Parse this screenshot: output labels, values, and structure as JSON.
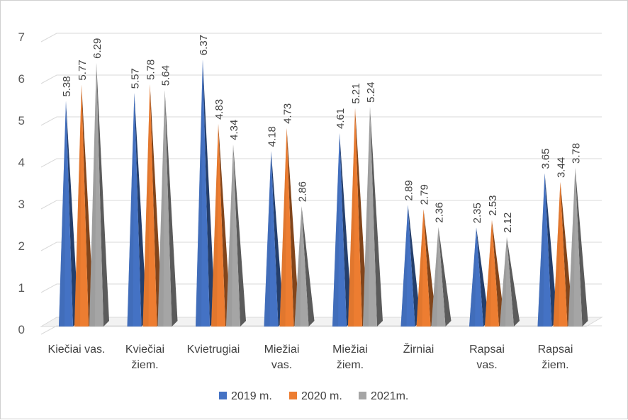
{
  "chart_data": {
    "type": "bar",
    "shape": "3d-pyramid-pointed",
    "categories": [
      [
        "Kiečiai vas."
      ],
      [
        "Kviečiai",
        "žiem."
      ],
      [
        "Kvietrugiai"
      ],
      [
        "Miežiai",
        "vas."
      ],
      [
        "Miežiai",
        "žiem."
      ],
      [
        "Žirniai"
      ],
      [
        "Rapsai",
        "vas."
      ],
      [
        "Rapsai",
        "žiem."
      ]
    ],
    "series": [
      {
        "name": "2019 m.",
        "color": "#4472C4",
        "values": [
          5.38,
          5.57,
          6.37,
          4.18,
          4.61,
          2.89,
          2.35,
          3.65
        ]
      },
      {
        "name": "2020 m.",
        "color": "#ED7D31",
        "values": [
          5.77,
          5.78,
          4.83,
          4.73,
          5.21,
          2.79,
          2.53,
          3.44
        ]
      },
      {
        "name": "2021m.",
        "color": "#A5A5A5",
        "values": [
          6.29,
          5.64,
          4.34,
          2.86,
          5.24,
          2.36,
          2.12,
          3.78
        ]
      }
    ],
    "yticks": [
      "0",
      "1",
      "2",
      "3",
      "4",
      "5",
      "6",
      "7"
    ],
    "ylim": [
      0,
      7
    ],
    "grid": true,
    "legend_position": "bottom",
    "data_labels": true,
    "title": "",
    "xlabel": "",
    "ylabel": ""
  }
}
